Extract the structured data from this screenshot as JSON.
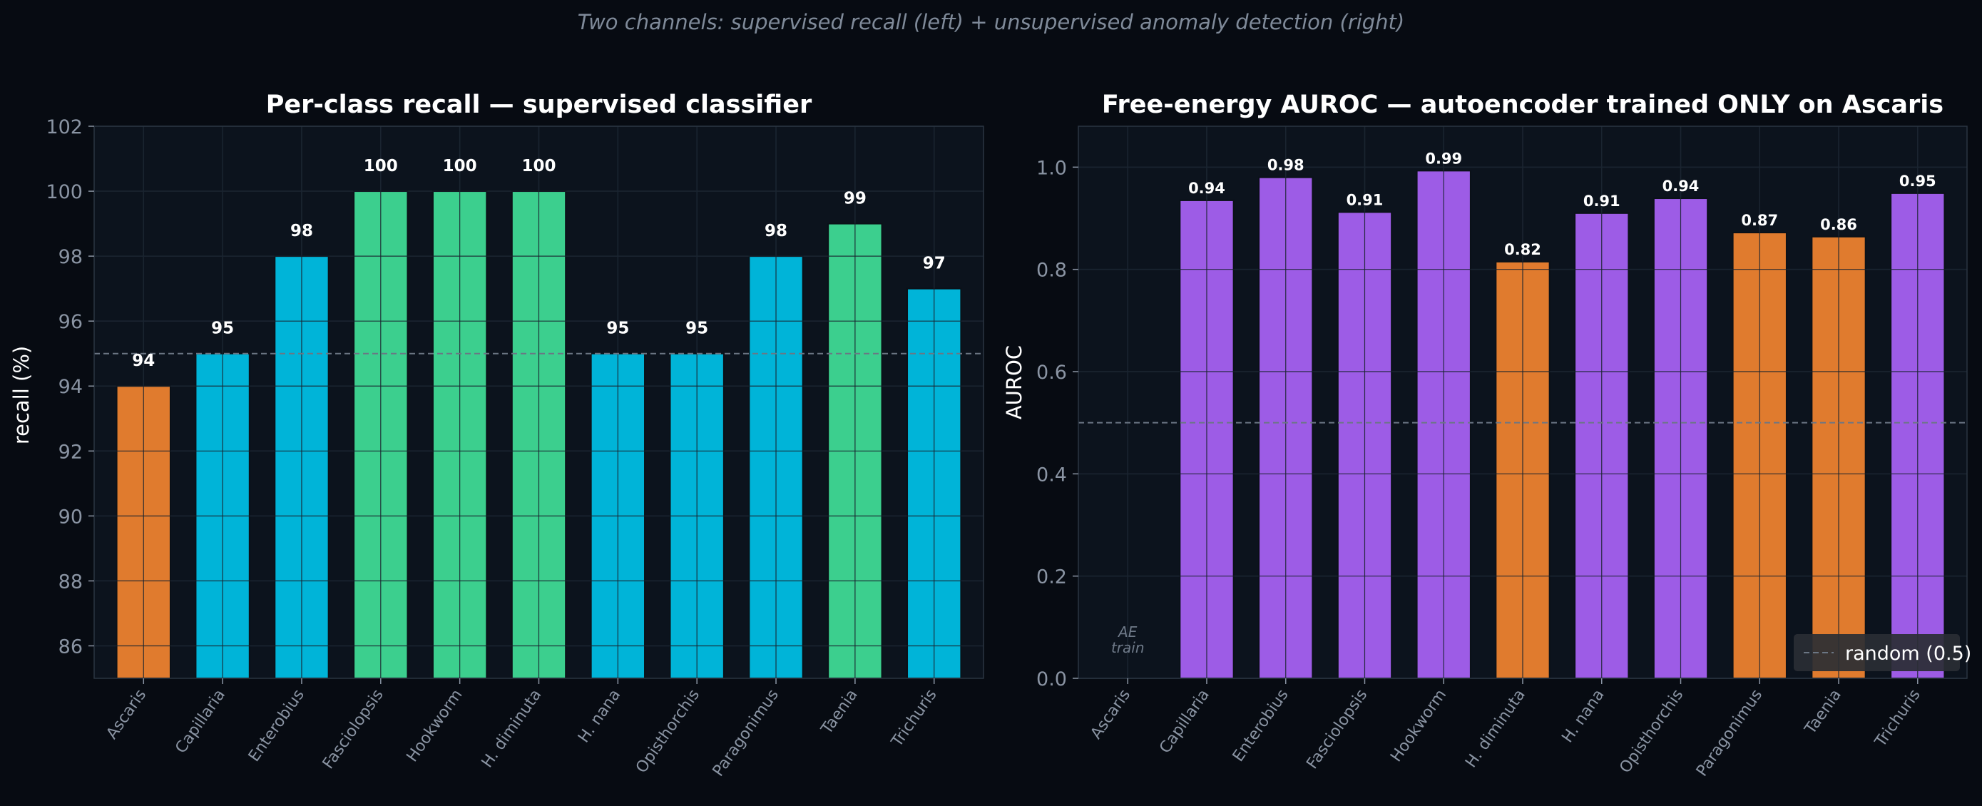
{
  "suptitle": "Two channels: supervised recall (left) + unsupervised anomaly detection (right)",
  "colors": {
    "background": "#070b12",
    "panel": "#0c131d",
    "grid": "#1e2935",
    "text": "#ffffff",
    "muted": "#8a94a3",
    "orange": "#e07b2e",
    "blue": "#00b4d8",
    "green": "#3ccf8e",
    "purple": "#9d5ce6",
    "reference_line": "#6b7684"
  },
  "chart_data": [
    {
      "type": "bar",
      "title": "Per-class recall — supervised classifier",
      "xlabel": "",
      "ylabel": "recall (%)",
      "ylim": [
        85,
        102
      ],
      "yticks": [
        86,
        88,
        90,
        92,
        94,
        96,
        98,
        100,
        102
      ],
      "grid": true,
      "categories": [
        "Ascaris",
        "Capillaria",
        "Enterobius",
        "Fasciolopsis",
        "Hookworm",
        "H. diminuta",
        "H. nana",
        "Opisthorchis",
        "Paragonimus",
        "Taenia",
        "Trichuris"
      ],
      "values": [
        94,
        95,
        98,
        100,
        100,
        100,
        95,
        95,
        98,
        99,
        97
      ],
      "value_labels": [
        "94",
        "95",
        "98",
        "100",
        "100",
        "100",
        "95",
        "95",
        "98",
        "99",
        "97"
      ],
      "bar_colors": [
        "orange",
        "blue",
        "blue",
        "green",
        "green",
        "green",
        "blue",
        "blue",
        "blue",
        "green",
        "blue"
      ],
      "reference_line": 95
    },
    {
      "type": "bar",
      "title": "Free-energy AUROC — autoencoder trained ONLY on Ascaris",
      "xlabel": "",
      "ylabel": "AUROC",
      "ylim": [
        0,
        1.08
      ],
      "yticks": [
        0.0,
        0.2,
        0.4,
        0.6,
        0.8,
        1.0
      ],
      "ytick_labels": [
        "0.0",
        "0.2",
        "0.4",
        "0.6",
        "0.8",
        "1.0"
      ],
      "grid": true,
      "categories": [
        "Ascaris",
        "Capillaria",
        "Enterobius",
        "Fasciolopsis",
        "Hookworm",
        "H. diminuta",
        "H. nana",
        "Opisthorchis",
        "Paragonimus",
        "Taenia",
        "Trichuris"
      ],
      "values": [
        null,
        0.935,
        0.98,
        0.912,
        0.993,
        0.815,
        0.91,
        0.939,
        0.872,
        0.864,
        0.949
      ],
      "value_labels": [
        "",
        "0.94",
        "0.98",
        "0.91",
        "0.99",
        "0.82",
        "0.91",
        "0.94",
        "0.87",
        "0.86",
        "0.95"
      ],
      "bar_colors": [
        "purple",
        "purple",
        "purple",
        "purple",
        "purple",
        "orange",
        "purple",
        "purple",
        "orange",
        "orange",
        "purple"
      ],
      "reference_line": 0.5,
      "annotation": "AE\ntrain",
      "legend": {
        "label": "random (0.5)",
        "placement": "lower-right"
      }
    }
  ]
}
